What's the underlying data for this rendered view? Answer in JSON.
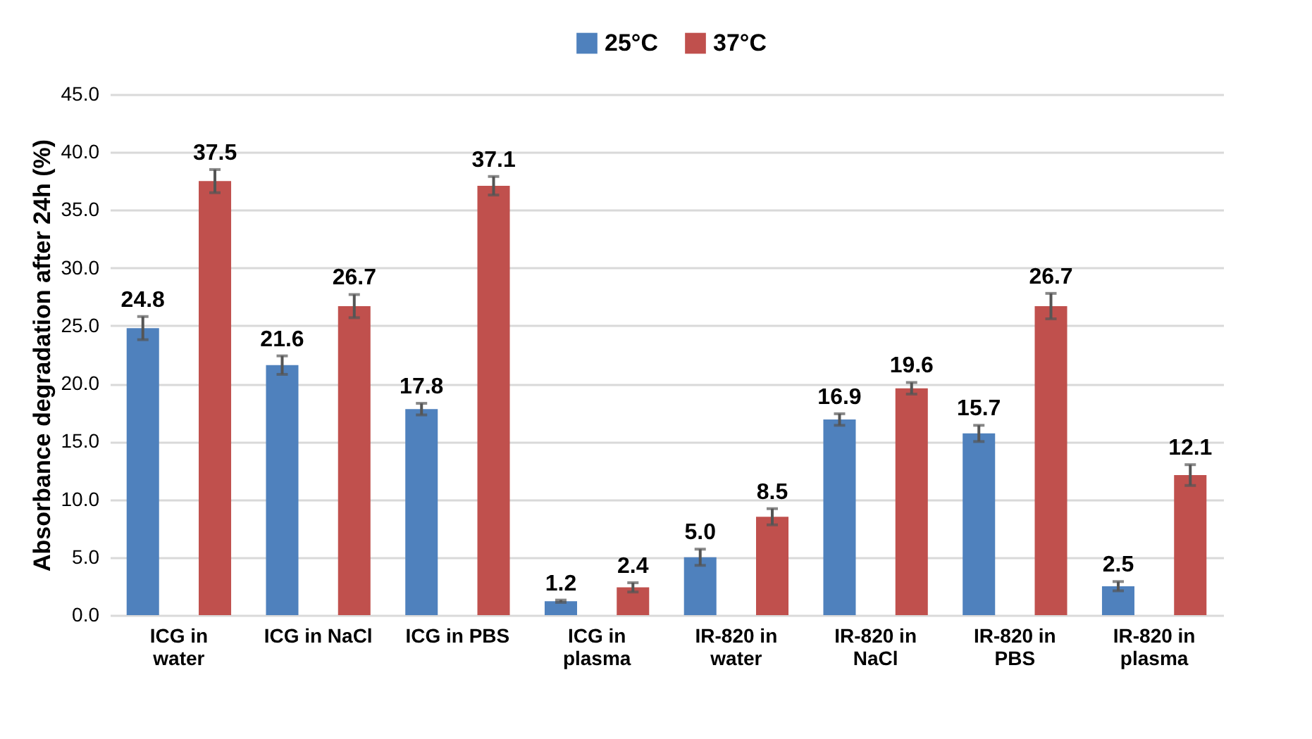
{
  "chart_data": {
    "type": "bar",
    "ylabel": "Absorbance degradation after 24h (%)",
    "categories": [
      "ICG in\nwater",
      "ICG in NaCl",
      "ICG in PBS",
      "ICG in\nplasma",
      "IR-820 in\nwater",
      "IR-820 in\nNaCl",
      "IR-820 in\nPBS",
      "IR-820 in\nplasma"
    ],
    "series": [
      {
        "name": "25°C",
        "color": "#4f81bd",
        "values": [
          24.8,
          21.6,
          17.8,
          1.2,
          5.0,
          16.9,
          15.7,
          2.5
        ],
        "errors": [
          1.0,
          0.8,
          0.5,
          0.1,
          0.7,
          0.5,
          0.7,
          0.4
        ],
        "value_labels": [
          "24.8",
          "21.6",
          "17.8",
          "1.2",
          "5.0",
          "16.9",
          "15.7",
          "2.5"
        ]
      },
      {
        "name": "37°C",
        "color": "#c0504d",
        "values": [
          37.5,
          26.7,
          37.1,
          2.4,
          8.5,
          19.6,
          26.7,
          12.1
        ],
        "errors": [
          1.0,
          1.0,
          0.8,
          0.4,
          0.7,
          0.5,
          1.1,
          0.9
        ],
        "value_labels": [
          "37.5",
          "26.7",
          "37.1",
          "2.4",
          "8.5",
          "19.6",
          "26.7",
          "12.1"
        ]
      }
    ],
    "ylim": [
      0,
      45
    ],
    "yticks": [
      {
        "value": 0,
        "label": "0.0"
      },
      {
        "value": 5,
        "label": "5.0"
      },
      {
        "value": 10,
        "label": "10.0"
      },
      {
        "value": 15,
        "label": "15.0"
      },
      {
        "value": 20,
        "label": "20.0"
      },
      {
        "value": 25,
        "label": "25.0"
      },
      {
        "value": 30,
        "label": "30.0"
      },
      {
        "value": 35,
        "label": "35.0"
      },
      {
        "value": 40,
        "label": "40.0"
      },
      {
        "value": 45,
        "label": "45.0"
      }
    ],
    "grid": "y",
    "legend": "top"
  }
}
